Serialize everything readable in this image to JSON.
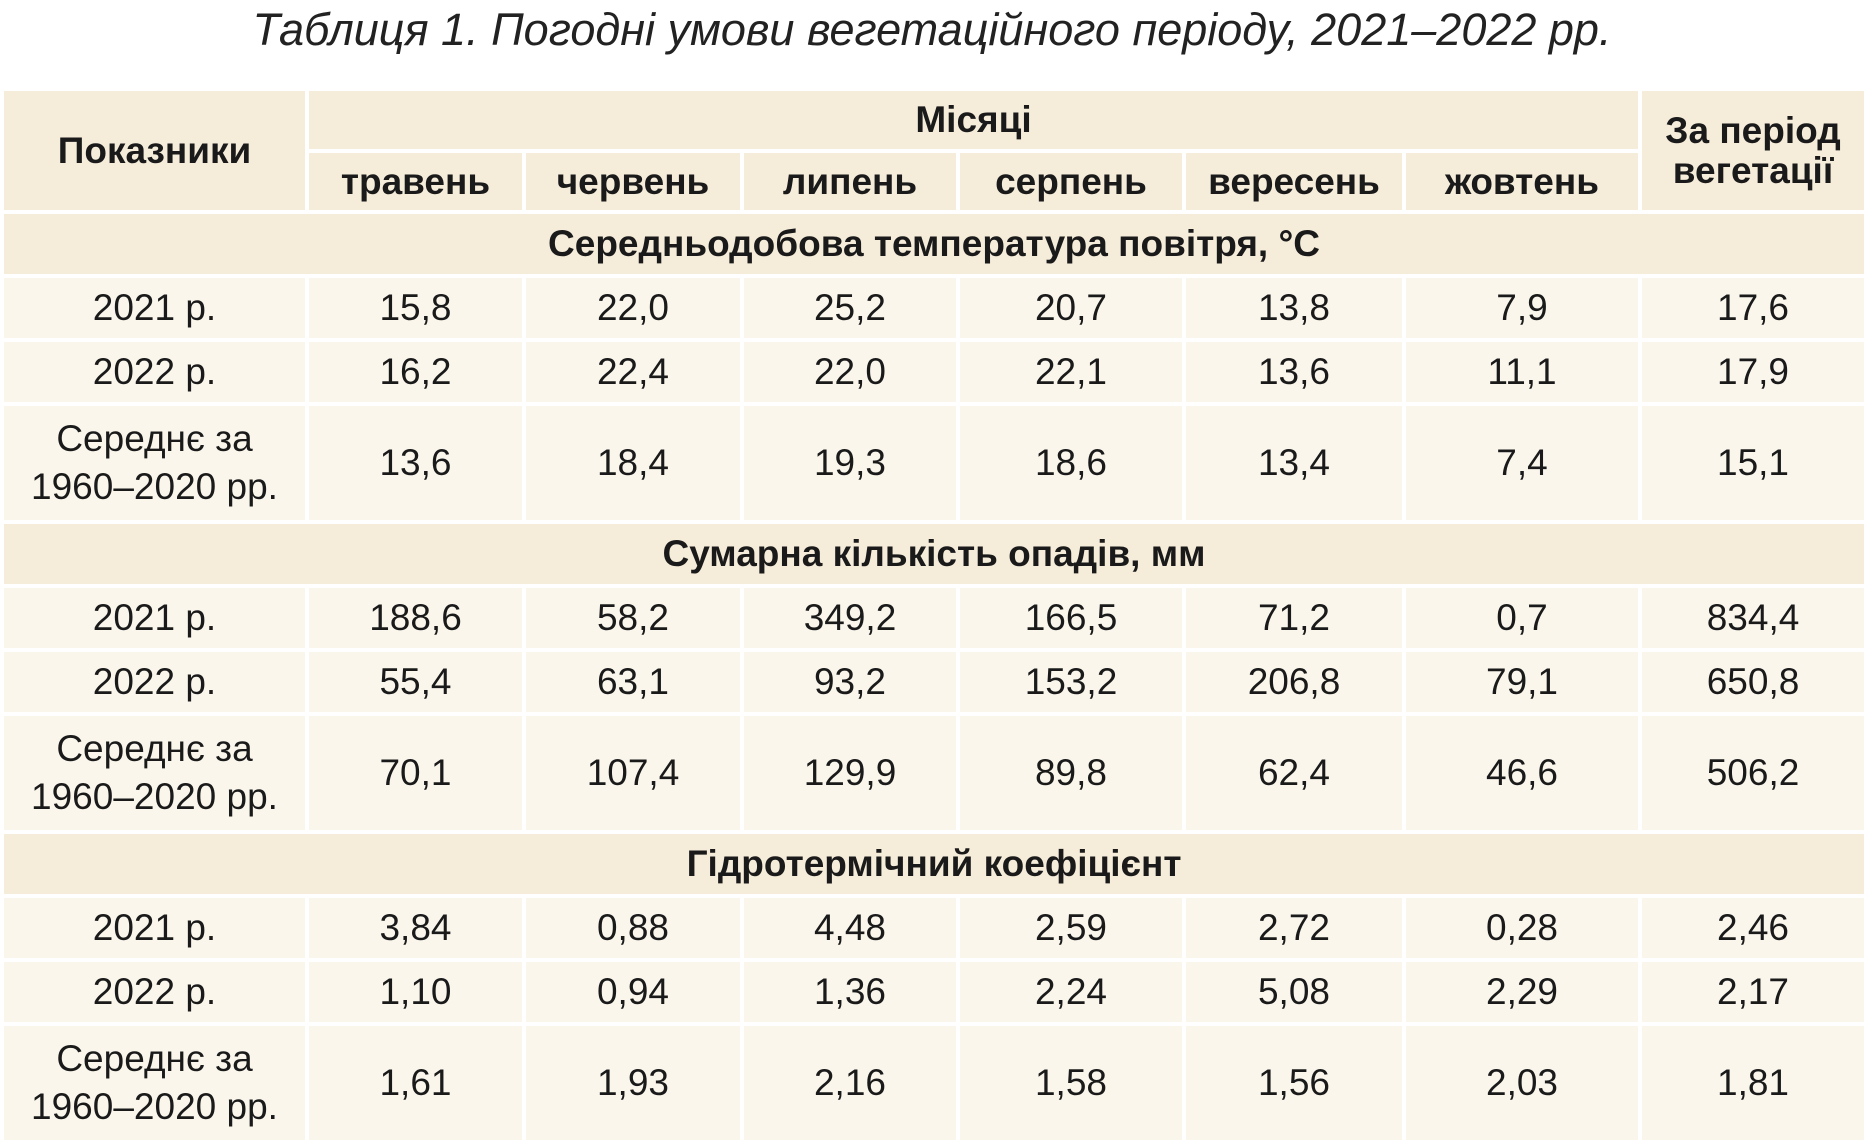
{
  "title": "Таблиця 1. Погодні умови вегетаційного періоду, 2021–2022 рр.",
  "header": {
    "indicators": "Показники",
    "months_group": "Місяці",
    "months": [
      "травень",
      "червень",
      "липень",
      "серпень",
      "вересень",
      "жовтень"
    ],
    "total_line1": "За період",
    "total_line2": "вегетації"
  },
  "sections": [
    {
      "title": "Середньодобова температура повітря, °С",
      "rows": [
        {
          "label": "2021 р.",
          "values": [
            "15,8",
            "22,0",
            "25,2",
            "20,7",
            "13,8",
            "7,9",
            "17,6"
          ]
        },
        {
          "label": "2022 р.",
          "values": [
            "16,2",
            "22,4",
            "22,0",
            "22,1",
            "13,6",
            "11,1",
            "17,9"
          ]
        },
        {
          "label_line1": "Середнє за",
          "label_line2": "1960–2020 рр.",
          "values": [
            "13,6",
            "18,4",
            "19,3",
            "18,6",
            "13,4",
            "7,4",
            "15,1"
          ]
        }
      ]
    },
    {
      "title": "Сумарна кількість опадів, мм",
      "rows": [
        {
          "label": "2021 р.",
          "values": [
            "188,6",
            "58,2",
            "349,2",
            "166,5",
            "71,2",
            "0,7",
            "834,4"
          ]
        },
        {
          "label": "2022 р.",
          "values": [
            "55,4",
            "63,1",
            "93,2",
            "153,2",
            "206,8",
            "79,1",
            "650,8"
          ]
        },
        {
          "label_line1": "Середнє за",
          "label_line2": "1960–2020 рр.",
          "values": [
            "70,1",
            "107,4",
            "129,9",
            "89,8",
            "62,4",
            "46,6",
            "506,2"
          ]
        }
      ]
    },
    {
      "title": "Гідротермічний коефіцієнт",
      "rows": [
        {
          "label": "2021 р.",
          "values": [
            "3,84",
            "0,88",
            "4,48",
            "2,59",
            "2,72",
            "0,28",
            "2,46"
          ]
        },
        {
          "label": "2022 р.",
          "values": [
            "1,10",
            "0,94",
            "1,36",
            "2,24",
            "5,08",
            "2,29",
            "2,17"
          ]
        },
        {
          "label_line1": "Середнє за",
          "label_line2": "1960–2020 рр.",
          "values": [
            "1,61",
            "1,93",
            "2,16",
            "1,58",
            "1,56",
            "2,03",
            "1,81"
          ]
        }
      ]
    }
  ],
  "colors": {
    "header_bg": "#f5ecda",
    "row_bg": "#faf6ec",
    "grid": "#ffffff"
  }
}
